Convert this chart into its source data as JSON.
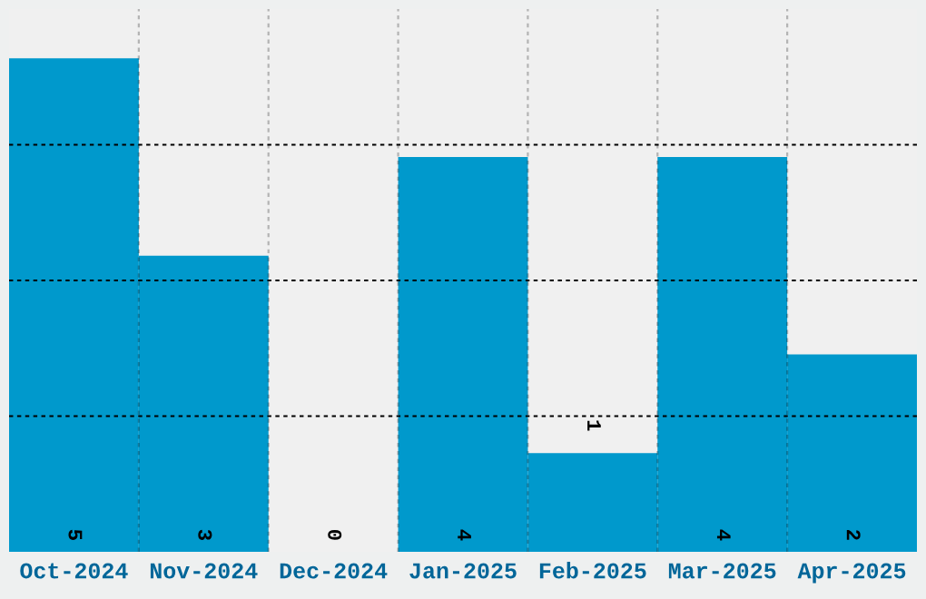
{
  "chart_data": {
    "type": "bar",
    "categories": [
      "Oct-2024",
      "Nov-2024",
      "Dec-2024",
      "Jan-2025",
      "Feb-2025",
      "Mar-2025",
      "Apr-2025"
    ],
    "values": [
      5,
      3,
      0,
      4,
      1,
      4,
      2
    ],
    "color": "#0099cc",
    "relative": false,
    "ylim": [
      0,
      5.5
    ],
    "yticks": [
      {
        "value": 1.375,
        "label": null
      },
      {
        "value": 2.75,
        "label": null
      },
      {
        "value": 4.125,
        "label": null
      }
    ],
    "grid": true,
    "data_labels": true,
    "tick_labels": "x"
  }
}
